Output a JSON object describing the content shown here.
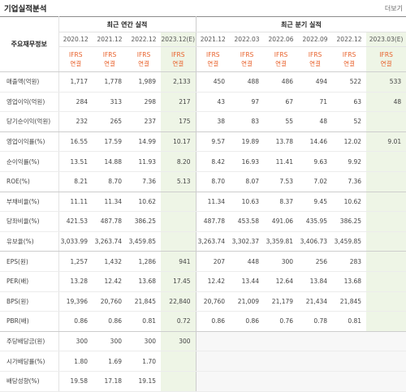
{
  "header": {
    "title": "기업실적분석",
    "more_label": "더보기"
  },
  "table": {
    "row_header_label": "주요재무정보",
    "annual_group_label": "최근 연간 실적",
    "quarter_group_label": "최근 분기 실적",
    "annual_periods": [
      "2020.12",
      "2021.12",
      "2022.12",
      "2023.12(E)"
    ],
    "quarter_periods": [
      "2021.12",
      "2022.03",
      "2022.06",
      "2022.09",
      "2022.12",
      "2023.03(E)"
    ],
    "ifrs_label": "IFRS",
    "consolidated_label": "연결",
    "rows": [
      {
        "label": "매출액(억원)",
        "annual": [
          "1,717",
          "1,778",
          "1,989",
          "2,133"
        ],
        "quarter": [
          "450",
          "488",
          "486",
          "494",
          "522",
          "533"
        ]
      },
      {
        "label": "영업이익(억원)",
        "annual": [
          "284",
          "313",
          "298",
          "217"
        ],
        "quarter": [
          "43",
          "97",
          "67",
          "71",
          "63",
          "48"
        ]
      },
      {
        "label": "당기순이익(억원)",
        "annual": [
          "232",
          "265",
          "237",
          "175"
        ],
        "quarter": [
          "38",
          "83",
          "55",
          "48",
          "52",
          ""
        ]
      },
      {
        "label": "영업이익률(%)",
        "annual": [
          "16.55",
          "17.59",
          "14.99",
          "10.17"
        ],
        "quarter": [
          "9.57",
          "19.89",
          "13.78",
          "14.46",
          "12.02",
          "9.01"
        ]
      },
      {
        "label": "순이익률(%)",
        "annual": [
          "13.51",
          "14.88",
          "11.93",
          "8.20"
        ],
        "quarter": [
          "8.42",
          "16.93",
          "11.41",
          "9.63",
          "9.92",
          ""
        ]
      },
      {
        "label": "ROE(%)",
        "annual": [
          "8.21",
          "8.70",
          "7.36",
          "5.13"
        ],
        "quarter": [
          "8.70",
          "8.07",
          "7.53",
          "7.02",
          "7.36",
          ""
        ]
      },
      {
        "label": "부채비율(%)",
        "annual": [
          "11.11",
          "11.34",
          "10.62",
          ""
        ],
        "quarter": [
          "11.34",
          "10.63",
          "8.37",
          "9.45",
          "10.62",
          ""
        ]
      },
      {
        "label": "당좌비율(%)",
        "annual": [
          "421.53",
          "487.78",
          "386.25",
          ""
        ],
        "quarter": [
          "487.78",
          "453.58",
          "491.06",
          "435.95",
          "386.25",
          ""
        ]
      },
      {
        "label": "유보율(%)",
        "annual": [
          "3,033.99",
          "3,263.74",
          "3,459.85",
          ""
        ],
        "quarter": [
          "3,263.74",
          "3,302.37",
          "3,359.81",
          "3,406.73",
          "3,459.85",
          ""
        ]
      },
      {
        "label": "EPS(원)",
        "annual": [
          "1,257",
          "1,432",
          "1,286",
          "941"
        ],
        "quarter": [
          "207",
          "448",
          "300",
          "256",
          "283",
          ""
        ]
      },
      {
        "label": "PER(배)",
        "annual": [
          "13.28",
          "12.42",
          "13.68",
          "17.45"
        ],
        "quarter": [
          "12.42",
          "13.44",
          "12.64",
          "13.84",
          "13.68",
          ""
        ]
      },
      {
        "label": "BPS(원)",
        "annual": [
          "19,396",
          "20,760",
          "21,845",
          "22,840"
        ],
        "quarter": [
          "20,760",
          "21,009",
          "21,179",
          "21,434",
          "21,845",
          ""
        ]
      },
      {
        "label": "PBR(배)",
        "annual": [
          "0.86",
          "0.86",
          "0.81",
          "0.72"
        ],
        "quarter": [
          "0.86",
          "0.86",
          "0.76",
          "0.78",
          "0.81",
          ""
        ]
      },
      {
        "label": "주당배당금(원)",
        "annual": [
          "300",
          "300",
          "300",
          "300"
        ],
        "quarter": [
          "",
          "",
          "",
          "",
          "",
          ""
        ]
      },
      {
        "label": "시가배당률(%)",
        "annual": [
          "1.80",
          "1.69",
          "1.70",
          ""
        ],
        "quarter": [
          "",
          "",
          "",
          "",
          "",
          ""
        ]
      },
      {
        "label": "배당성향(%)",
        "annual": [
          "19.58",
          "17.18",
          "19.15",
          ""
        ],
        "quarter": [
          "",
          "",
          "",
          "",
          "",
          ""
        ]
      }
    ]
  },
  "colors": {
    "ifrs_text": "#e8612b",
    "estimate_bg": "#eef5e6",
    "empty_bg": "#f7f7f7"
  }
}
